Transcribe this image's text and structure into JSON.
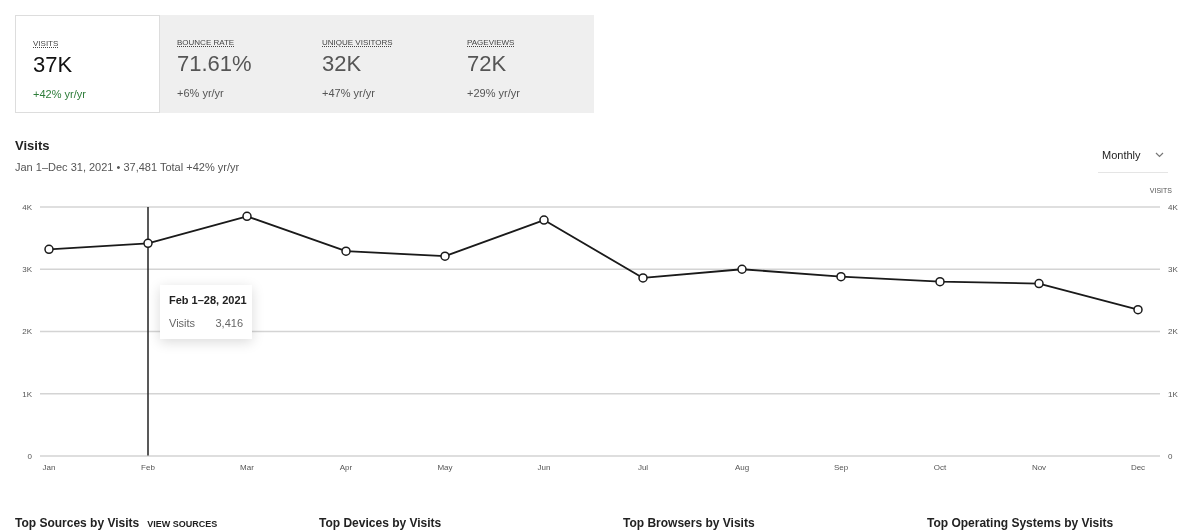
{
  "chart_data": {
    "type": "line",
    "title": "Visits",
    "subtitle": "Jan 1–Dec 31, 2021 • 37,481 Total +42% yr/yr",
    "y2label": "VISITS",
    "categories": [
      "Jan",
      "Feb",
      "Mar",
      "Apr",
      "May",
      "Jun",
      "Jul",
      "Aug",
      "Sep",
      "Oct",
      "Nov",
      "Dec"
    ],
    "series": [
      {
        "color": "#1a1a1a",
        "values": [
          3320,
          3416,
          3850,
          3290,
          3210,
          3790,
          2860,
          3000,
          2880,
          2800,
          2770,
          2350
        ]
      }
    ],
    "ylim": [
      0,
      4000
    ],
    "yticks": [
      {
        "value": 0,
        "label": "0"
      },
      {
        "value": 1000,
        "label": "1K"
      },
      {
        "value": 2000,
        "label": "2K"
      },
      {
        "value": 3000,
        "label": "3K"
      },
      {
        "value": 4000,
        "label": "4K"
      }
    ],
    "y2lim": [
      0,
      4000
    ],
    "y2ticks": [
      {
        "value": 0,
        "label": "0"
      },
      {
        "value": 1000,
        "label": "1K"
      },
      {
        "value": 2000,
        "label": "2K"
      },
      {
        "value": 3000,
        "label": "3K"
      },
      {
        "value": 4000,
        "label": "4K"
      }
    ],
    "grid": "y",
    "marker": "circle",
    "line_style": "solid",
    "ref_lines": [
      {
        "axis": "x",
        "value": "Feb",
        "color": "#222222"
      }
    ],
    "annotations": [
      "VISITS",
      "37K",
      "+42% yr/yr",
      "BOUNCE RATE",
      "71.61%",
      "+6% yr/yr",
      "UNIQUE VISITORS",
      "32K",
      "+47% yr/yr",
      "PAGEVIEWS",
      "72K",
      "+29% yr/yr",
      "Monthly",
      "Top Sources by Visits",
      "VIEW SOURCES",
      "Top Devices by Visits",
      "Top Browsers by Visits",
      "Top Operating Systems by Visits",
      "Feb 1–28, 2021",
      "Visits",
      "3,416"
    ]
  }
}
